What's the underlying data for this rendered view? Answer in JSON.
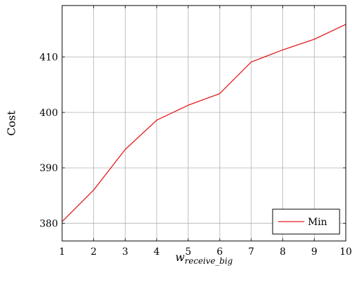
{
  "chart_data": {
    "type": "line",
    "x": [
      1,
      2,
      3,
      4,
      5,
      6,
      7,
      8,
      9,
      10
    ],
    "series": [
      {
        "name": "Min",
        "color": "#e41a1c",
        "values": [
          380.3,
          386.0,
          393.3,
          398.6,
          401.3,
          403.4,
          409.1,
          411.3,
          413.2,
          415.9
        ]
      }
    ],
    "xlabel_main": "w",
    "xlabel_sub": "receive_big",
    "ylabel": "Cost",
    "xticks": [
      1,
      2,
      3,
      4,
      5,
      6,
      7,
      8,
      9,
      10
    ],
    "yticks": [
      380,
      390,
      400,
      410
    ],
    "xlim": [
      1,
      10
    ],
    "ylim": [
      376.8,
      419.3
    ],
    "grid": true,
    "legend_position": "bottom-right"
  }
}
